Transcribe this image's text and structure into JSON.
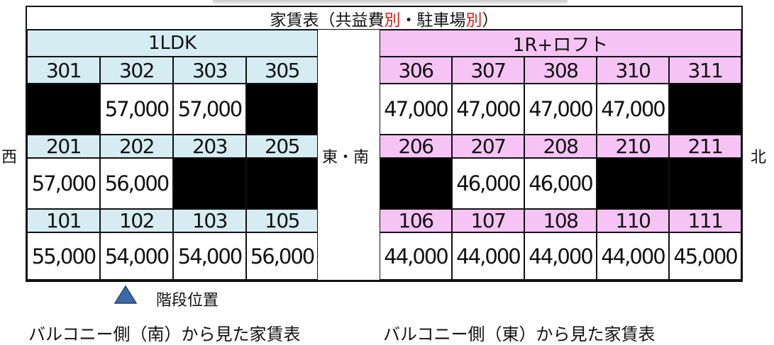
{
  "title": {
    "prefix": "家賃表（共益費",
    "red1": "別",
    "middle": "・駐車場",
    "red2": "別",
    "suffix": "）"
  },
  "sections": {
    "left": "1LDK",
    "right": "1R+ロフト"
  },
  "directions": {
    "west": "西",
    "east_south": "東・南",
    "north": "北"
  },
  "floor3": {
    "left": [
      {
        "room": "301",
        "rent": null
      },
      {
        "room": "302",
        "rent": "57,000"
      },
      {
        "room": "303",
        "rent": "57,000"
      },
      {
        "room": "305",
        "rent": null
      }
    ],
    "right": [
      {
        "room": "306",
        "rent": "47,000"
      },
      {
        "room": "307",
        "rent": "47,000"
      },
      {
        "room": "308",
        "rent": "47,000"
      },
      {
        "room": "310",
        "rent": "47,000"
      },
      {
        "room": "311",
        "rent": null
      }
    ]
  },
  "floor2": {
    "left": [
      {
        "room": "201",
        "rent": "57,000"
      },
      {
        "room": "202",
        "rent": "56,000"
      },
      {
        "room": "203",
        "rent": null
      },
      {
        "room": "205",
        "rent": null
      }
    ],
    "right": [
      {
        "room": "206",
        "rent": null
      },
      {
        "room": "207",
        "rent": "46,000"
      },
      {
        "room": "208",
        "rent": "46,000"
      },
      {
        "room": "210",
        "rent": null
      },
      {
        "room": "211",
        "rent": null
      }
    ]
  },
  "floor1": {
    "left": [
      {
        "room": "101",
        "rent": "55,000"
      },
      {
        "room": "102",
        "rent": "54,000"
      },
      {
        "room": "103",
        "rent": "54,000"
      },
      {
        "room": "105",
        "rent": "56,000"
      }
    ],
    "right": [
      {
        "room": "106",
        "rent": "44,000"
      },
      {
        "room": "107",
        "rent": "44,000"
      },
      {
        "room": "108",
        "rent": "44,000"
      },
      {
        "room": "110",
        "rent": "44,000"
      },
      {
        "room": "111",
        "rent": "45,000"
      }
    ]
  },
  "legend": {
    "icon": "triangle-icon",
    "label": "階段位置",
    "color": "#3b6ba8"
  },
  "captions": {
    "left": "バルコニー側（南）から見た家賃表",
    "right": "バルコニー側（東）から見た家賃表"
  }
}
